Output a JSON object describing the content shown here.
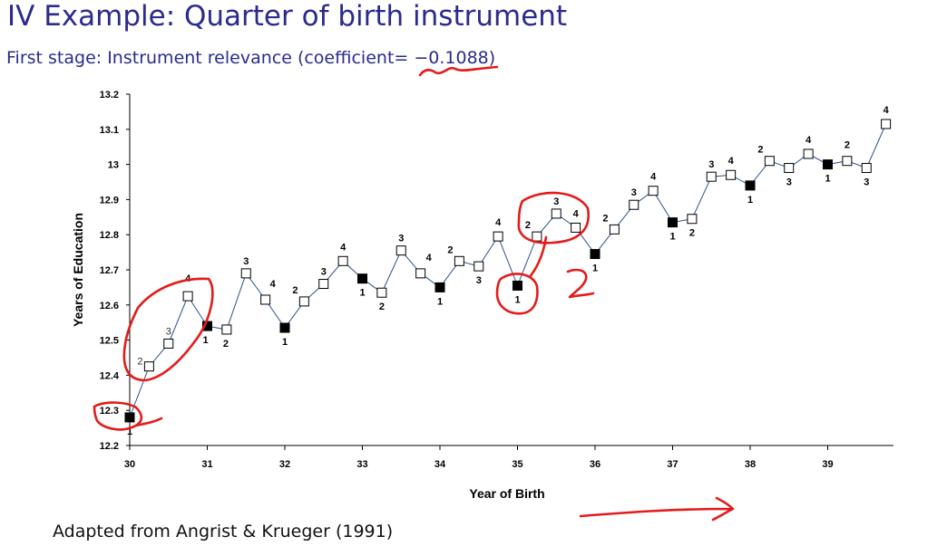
{
  "slide": {
    "title": "IV Example: Quarter of birth instrument",
    "subtitle": "First stage: Instrument relevance (coefficient= −0.1088)",
    "source": "Adapted from Angrist & Krueger (1991)"
  },
  "colors": {
    "title": "#2b2b8c",
    "line": "#2a4f8a",
    "annotation": "#e31b1b"
  },
  "chart_data": {
    "type": "line",
    "title": "",
    "xlabel": "Year of Birth",
    "ylabel": "Years of Education",
    "xlim": [
      30,
      39.8
    ],
    "ylim": [
      12.2,
      13.2
    ],
    "x_ticks": [
      "30",
      "31",
      "32",
      "33",
      "34",
      "35",
      "36",
      "37",
      "38",
      "39"
    ],
    "y_ticks": [
      "12.2",
      "12.3",
      "12.4",
      "12.5",
      "12.6",
      "12.7",
      "12.8",
      "12.9",
      "13",
      "13.1",
      "13.2"
    ],
    "marker_legend": "filled square = quarter 1, open square = quarters 2-4",
    "points": [
      {
        "x": 30.0,
        "y": 12.28,
        "quarter": "1"
      },
      {
        "x": 30.25,
        "y": 12.425,
        "quarter": "2"
      },
      {
        "x": 30.5,
        "y": 12.49,
        "quarter": "3"
      },
      {
        "x": 30.75,
        "y": 12.625,
        "quarter": "4"
      },
      {
        "x": 31.0,
        "y": 12.54,
        "quarter": "1"
      },
      {
        "x": 31.25,
        "y": 12.53,
        "quarter": "2"
      },
      {
        "x": 31.5,
        "y": 12.69,
        "quarter": "3"
      },
      {
        "x": 31.75,
        "y": 12.615,
        "quarter": "4"
      },
      {
        "x": 32.0,
        "y": 12.535,
        "quarter": "1"
      },
      {
        "x": 32.25,
        "y": 12.61,
        "quarter": "2"
      },
      {
        "x": 32.5,
        "y": 12.66,
        "quarter": "3"
      },
      {
        "x": 32.75,
        "y": 12.725,
        "quarter": "4"
      },
      {
        "x": 33.0,
        "y": 12.675,
        "quarter": "1"
      },
      {
        "x": 33.25,
        "y": 12.635,
        "quarter": "2"
      },
      {
        "x": 33.5,
        "y": 12.755,
        "quarter": "3"
      },
      {
        "x": 33.75,
        "y": 12.69,
        "quarter": "4"
      },
      {
        "x": 34.0,
        "y": 12.65,
        "quarter": "1"
      },
      {
        "x": 34.25,
        "y": 12.725,
        "quarter": "2"
      },
      {
        "x": 34.5,
        "y": 12.71,
        "quarter": "3"
      },
      {
        "x": 34.75,
        "y": 12.795,
        "quarter": "4"
      },
      {
        "x": 35.0,
        "y": 12.655,
        "quarter": "1"
      },
      {
        "x": 35.25,
        "y": 12.795,
        "quarter": "2"
      },
      {
        "x": 35.5,
        "y": 12.86,
        "quarter": "3"
      },
      {
        "x": 35.75,
        "y": 12.82,
        "quarter": "4"
      },
      {
        "x": 36.0,
        "y": 12.745,
        "quarter": "1"
      },
      {
        "x": 36.25,
        "y": 12.815,
        "quarter": "2"
      },
      {
        "x": 36.5,
        "y": 12.885,
        "quarter": "3"
      },
      {
        "x": 36.75,
        "y": 12.925,
        "quarter": "4"
      },
      {
        "x": 37.0,
        "y": 12.835,
        "quarter": "1"
      },
      {
        "x": 37.25,
        "y": 12.845,
        "quarter": "2"
      },
      {
        "x": 37.5,
        "y": 12.965,
        "quarter": "3"
      },
      {
        "x": 37.75,
        "y": 12.97,
        "quarter": "4"
      },
      {
        "x": 38.0,
        "y": 12.94,
        "quarter": "1"
      },
      {
        "x": 38.25,
        "y": 13.01,
        "quarter": "2"
      },
      {
        "x": 38.5,
        "y": 12.99,
        "quarter": "3"
      },
      {
        "x": 38.75,
        "y": 13.03,
        "quarter": "4"
      },
      {
        "x": 39.0,
        "y": 13.0,
        "quarter": "1"
      },
      {
        "x": 39.25,
        "y": 13.01,
        "quarter": "2"
      },
      {
        "x": 39.5,
        "y": 12.99,
        "quarter": "3"
      },
      {
        "x": 39.75,
        "y": 13.115,
        "quarter": "4"
      }
    ],
    "grid": false
  }
}
